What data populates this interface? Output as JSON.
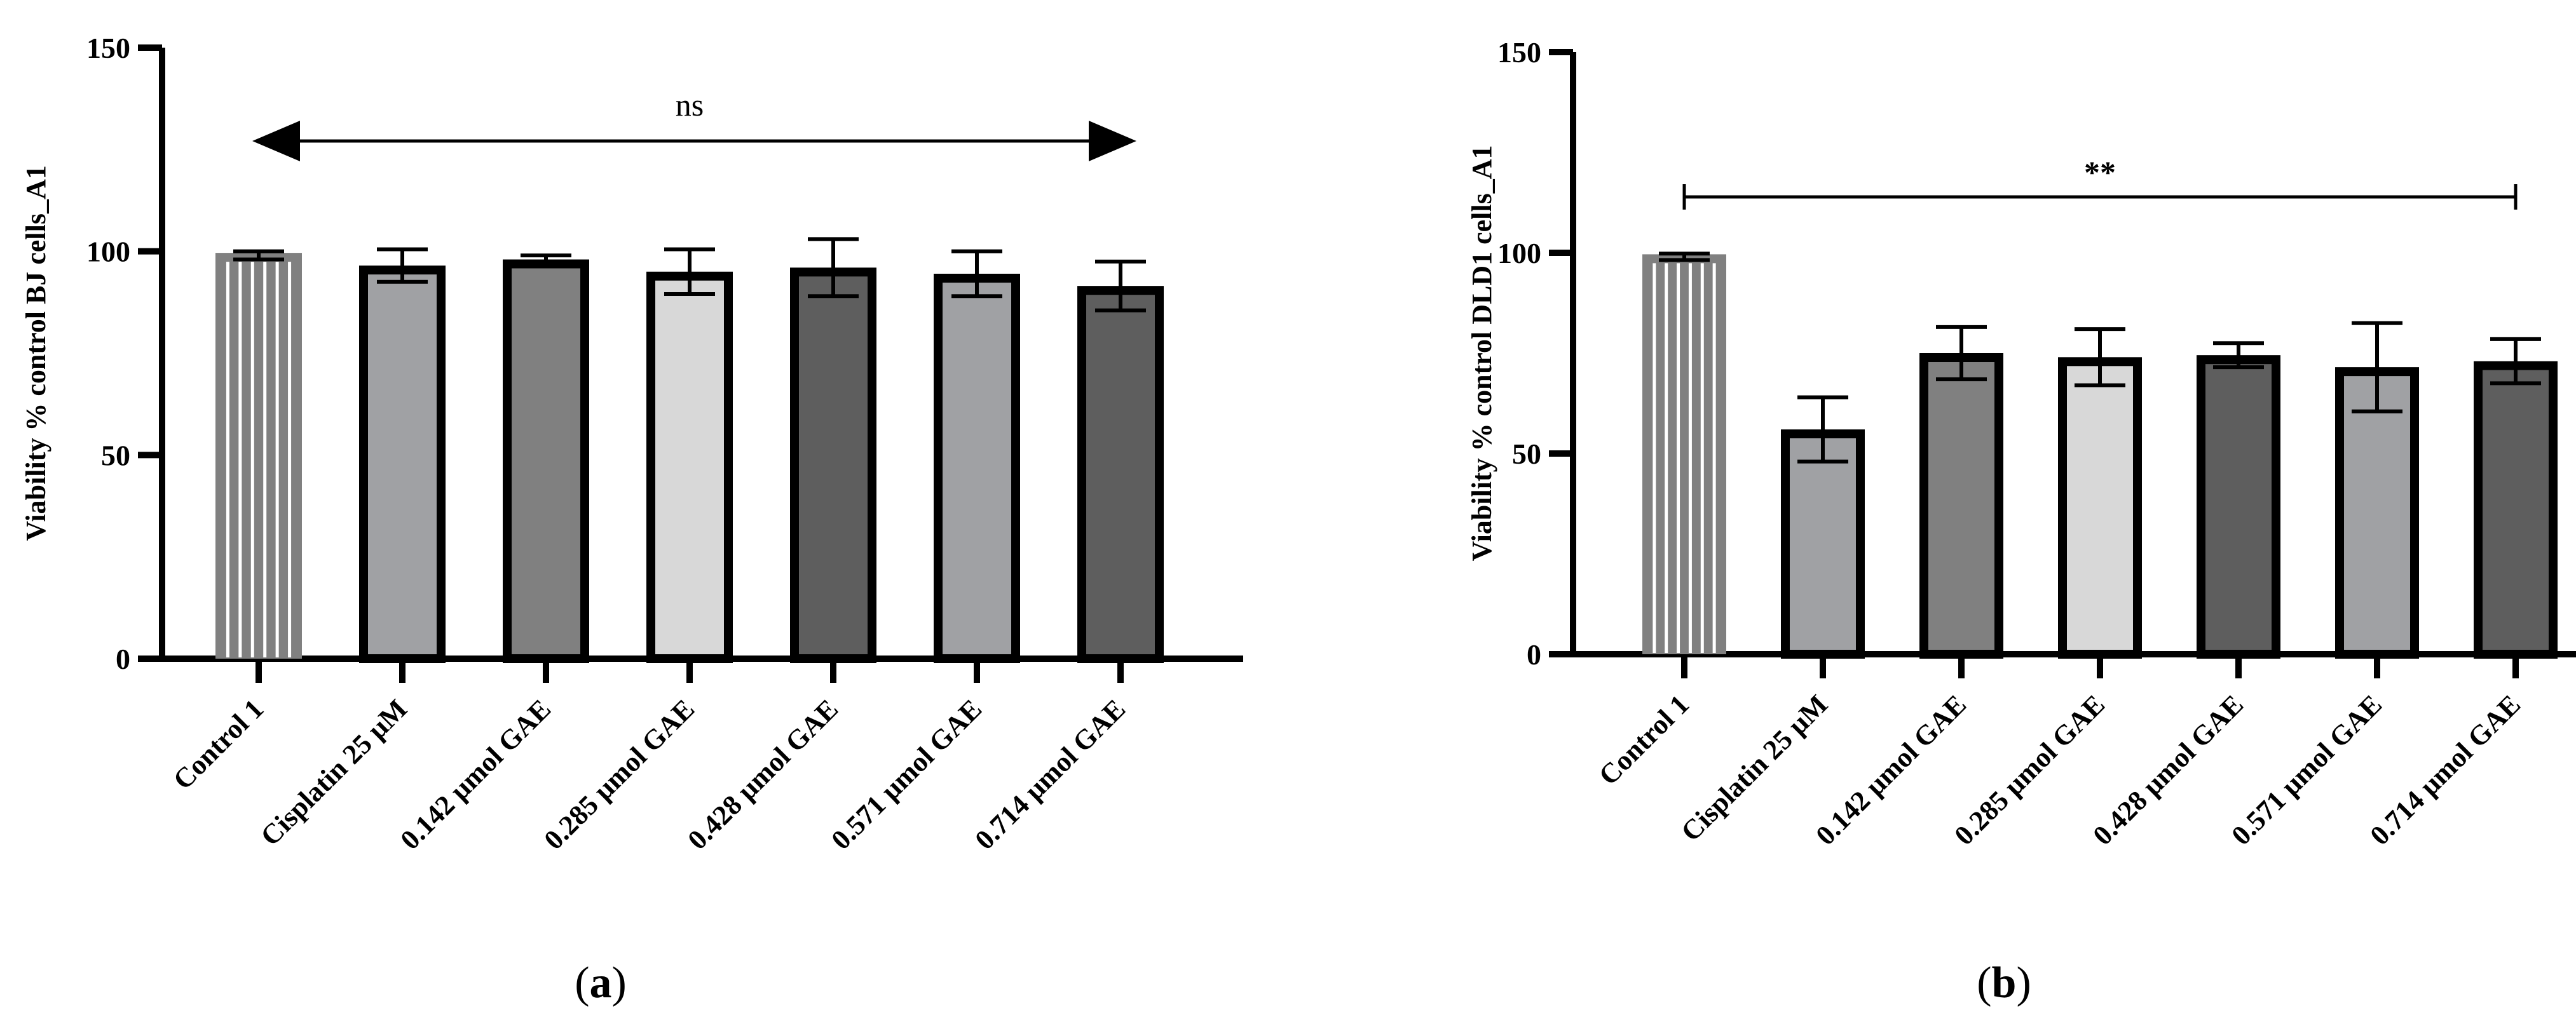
{
  "colors": {
    "axis": "#000000",
    "control_fill": "#808080",
    "control_stripe": "#ffffff",
    "bar_palette": [
      "#a0a1a4",
      "#808080",
      "#d8d8d8",
      "#5e5e5e",
      "#a0a1a4",
      "#5e5e5e"
    ]
  },
  "chart_data": [
    {
      "type": "bar",
      "panel_label": "(a)",
      "ylabel": "Viability % control BJ cells_A1",
      "xlabel": "",
      "ylim": [
        0,
        150
      ],
      "yticks": [
        0,
        50,
        100,
        150
      ],
      "categories": [
        "Control 1",
        "Cisplatin 25 µM",
        "0.142 µmol GAE",
        "0.285 µmol GAE",
        "0.428 µmol GAE",
        "0.571 µmol GAE",
        "0.714 µmol GAE"
      ],
      "values": [
        99,
        96.5,
        98,
        95,
        96,
        94.5,
        91.5
      ],
      "errors": [
        1,
        4,
        1,
        5.5,
        7,
        5.5,
        6
      ],
      "significance": {
        "label": "ns",
        "style": "double-arrow",
        "from": 0,
        "to": 6
      }
    },
    {
      "type": "bar",
      "panel_label": "(b)",
      "ylabel": "Viability % control DLD1 cells_A1",
      "xlabel": "",
      "ylim": [
        0,
        150
      ],
      "yticks": [
        0,
        50,
        100,
        150
      ],
      "categories": [
        "Control 1",
        "Cisplatin 25 µM",
        "0.142 µmol GAE",
        "0.285 µmol GAE",
        "0.428 µmol GAE",
        "0.571 µmol GAE",
        "0.714 µmol GAE"
      ],
      "values": [
        99,
        56,
        75,
        74,
        74.5,
        71.5,
        73
      ],
      "errors": [
        0.8,
        8,
        6.5,
        7,
        3,
        11,
        5.5
      ],
      "significance": {
        "label": "**",
        "style": "bracket",
        "from": 0,
        "to": 6
      }
    }
  ]
}
